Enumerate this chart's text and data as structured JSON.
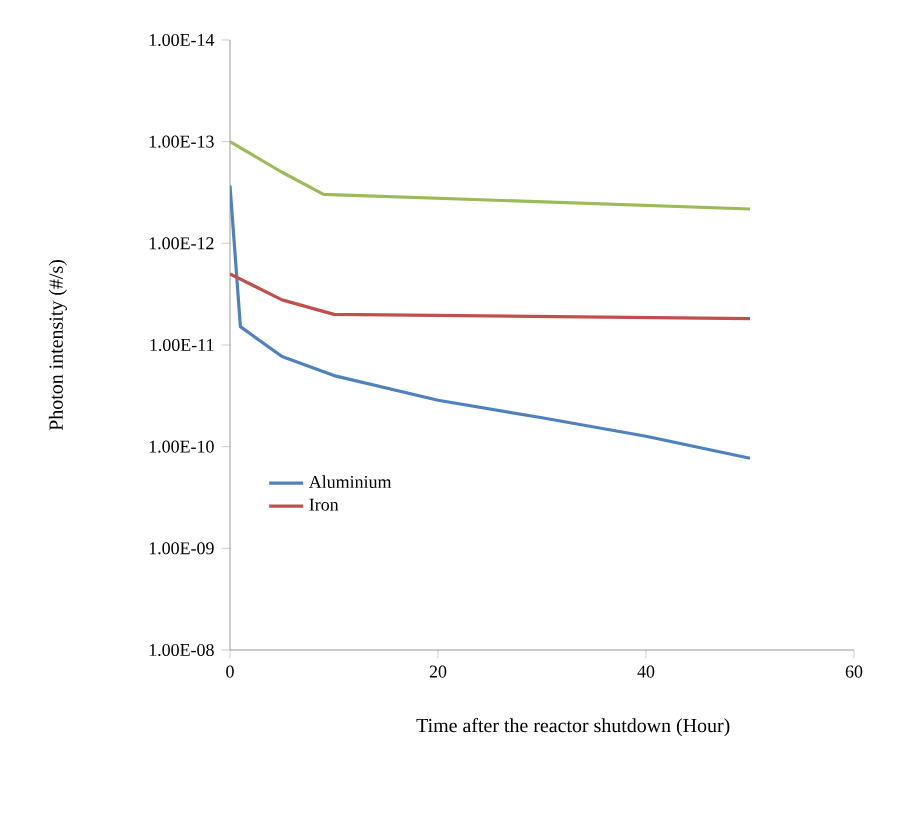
{
  "chart_data": {
    "type": "line",
    "xlabel": "Time after  the reactor shutdown (Hour)",
    "ylabel": "Photon intensity (#/s)",
    "log": "y",
    "ylim": [
      1e-08,
      1e-14
    ],
    "xlim": [
      0,
      60
    ],
    "xticks": [
      0,
      20,
      40,
      60
    ],
    "yticks": [
      {
        "value": 1e-14,
        "label": "1.00E-14"
      },
      {
        "value": 1e-13,
        "label": "1.00E-13"
      },
      {
        "value": 1e-12,
        "label": "1.00E-12"
      },
      {
        "value": 1e-11,
        "label": "1.00E-11"
      },
      {
        "value": 1e-10,
        "label": "1.00E-10"
      },
      {
        "value": 1e-09,
        "label": "1.00E-09"
      },
      {
        "value": 1e-08,
        "label": "1.00E-08"
      }
    ],
    "legend": "left",
    "marker": "none",
    "line_style": "solid",
    "grid": false,
    "series": [
      {
        "name": "Aluminium",
        "color": "#4f81bd",
        "x": [
          0,
          1,
          5,
          10,
          20,
          30,
          40,
          50
        ],
        "values": [
          2.7e-13,
          6.6e-12,
          1.3e-11,
          2e-11,
          3.5e-11,
          5.2e-11,
          7.9e-11,
          1.3e-10
        ]
      },
      {
        "name": "Iron",
        "color": "#c0504d",
        "x": [
          0,
          5,
          10,
          50
        ],
        "values": [
          2e-12,
          3.6e-12,
          5e-12,
          5.5e-12
        ]
      },
      {
        "color": "#9bbb59",
        "x": [
          0,
          5,
          9,
          50
        ],
        "values": [
          1e-13,
          2e-13,
          3.3e-13,
          4.6e-13
        ]
      }
    ]
  }
}
